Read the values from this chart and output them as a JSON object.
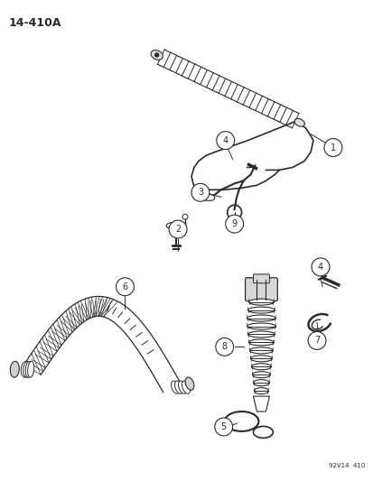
{
  "title_label": "14-410A",
  "footer_label": "92V14  410",
  "background_color": "#ffffff",
  "line_color": "#2a2a2a",
  "figsize": [
    4.14,
    5.33
  ],
  "dpi": 100
}
